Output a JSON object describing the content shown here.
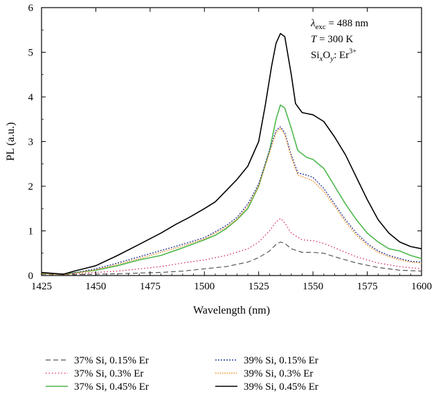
{
  "chart_data": {
    "type": "line",
    "xlabel": "Wavelength (nm)",
    "ylabel": "PL (a.u.)",
    "xlim": [
      1425,
      1600
    ],
    "ylim": [
      0,
      6
    ],
    "xticks": [
      "1425",
      "1450",
      "1475",
      "1500",
      "1525",
      "1550",
      "1575",
      "1600"
    ],
    "yticks": [
      "0",
      "1",
      "2",
      "3",
      "4",
      "5",
      "6"
    ],
    "grid": false,
    "legend_placement": "bottom, below plot, two columns",
    "annotations": {
      "excitation": {
        "symbol": "λ",
        "sub": "exc",
        "rest": " = 488 nm"
      },
      "temperature": {
        "symbol": "T",
        "rest": " = 300 K"
      },
      "material": {
        "si": "Si",
        "sub1": "x",
        "o": "O",
        "sub2": "y",
        "colon": ": Er",
        "sup": "3+"
      }
    },
    "series": [
      {
        "name": "37% Si, 0.15% Er",
        "color": "#555555",
        "dash": "7,4",
        "width": 1.2,
        "x": [
          1425,
          1440,
          1460,
          1480,
          1490,
          1500,
          1510,
          1520,
          1525,
          1530,
          1533,
          1535,
          1537,
          1540,
          1545,
          1550,
          1555,
          1560,
          1570,
          1580,
          1590,
          1600
        ],
        "y": [
          0.03,
          0.02,
          0.04,
          0.07,
          0.1,
          0.15,
          0.2,
          0.3,
          0.4,
          0.55,
          0.7,
          0.75,
          0.72,
          0.6,
          0.52,
          0.52,
          0.5,
          0.42,
          0.28,
          0.18,
          0.12,
          0.1
        ]
      },
      {
        "name": "37% Si, 0.3% Er",
        "color": "#d6245a",
        "dash": "1.5,3",
        "width": 1.3,
        "x": [
          1425,
          1440,
          1460,
          1480,
          1490,
          1500,
          1510,
          1520,
          1525,
          1530,
          1533,
          1535,
          1537,
          1540,
          1545,
          1550,
          1555,
          1560,
          1570,
          1580,
          1590,
          1600
        ],
        "y": [
          0.04,
          0.04,
          0.1,
          0.2,
          0.28,
          0.35,
          0.45,
          0.6,
          0.75,
          1.0,
          1.2,
          1.28,
          1.18,
          0.95,
          0.8,
          0.78,
          0.72,
          0.62,
          0.42,
          0.28,
          0.2,
          0.15
        ]
      },
      {
        "name": "37% Si, 0.45% Er",
        "color": "#4cb84c",
        "dash": "",
        "width": 1.6,
        "x": [
          1425,
          1430,
          1435,
          1440,
          1450,
          1460,
          1470,
          1480,
          1490,
          1500,
          1505,
          1510,
          1515,
          1520,
          1525,
          1530,
          1533,
          1535,
          1537,
          1540,
          1543,
          1547,
          1550,
          1555,
          1560,
          1565,
          1570,
          1575,
          1580,
          1585,
          1590,
          1595,
          1600
        ],
        "y": [
          0.05,
          0.04,
          0.03,
          0.06,
          0.12,
          0.22,
          0.35,
          0.45,
          0.62,
          0.8,
          0.9,
          1.05,
          1.25,
          1.5,
          2.0,
          2.8,
          3.5,
          3.82,
          3.75,
          3.3,
          2.8,
          2.65,
          2.6,
          2.4,
          2.0,
          1.6,
          1.25,
          0.95,
          0.75,
          0.6,
          0.55,
          0.45,
          0.38
        ]
      },
      {
        "name": "39% Si, 0.15% Er",
        "color": "#2b3c9e",
        "dash": "2,2",
        "width": 1.4,
        "x": [
          1425,
          1430,
          1435,
          1440,
          1450,
          1460,
          1470,
          1480,
          1490,
          1500,
          1505,
          1510,
          1515,
          1520,
          1525,
          1530,
          1533,
          1535,
          1537,
          1540,
          1543,
          1547,
          1550,
          1555,
          1560,
          1565,
          1570,
          1575,
          1580,
          1585,
          1590,
          1595,
          1600
        ],
        "y": [
          0.06,
          0.04,
          0.02,
          0.06,
          0.15,
          0.28,
          0.42,
          0.56,
          0.7,
          0.85,
          0.98,
          1.12,
          1.3,
          1.6,
          2.05,
          2.8,
          3.25,
          3.33,
          3.2,
          2.7,
          2.3,
          2.25,
          2.2,
          1.95,
          1.6,
          1.25,
          0.95,
          0.72,
          0.55,
          0.45,
          0.38,
          0.32,
          0.3
        ]
      },
      {
        "name": "39% Si, 0.3% Er",
        "color": "#f08a1c",
        "dash": "1.5,1.8",
        "width": 1.4,
        "x": [
          1425,
          1430,
          1435,
          1440,
          1450,
          1460,
          1470,
          1480,
          1490,
          1500,
          1505,
          1510,
          1515,
          1520,
          1525,
          1530,
          1533,
          1535,
          1537,
          1540,
          1543,
          1547,
          1550,
          1555,
          1560,
          1565,
          1570,
          1575,
          1580,
          1585,
          1590,
          1595,
          1600
        ],
        "y": [
          0.05,
          0.03,
          0.02,
          0.05,
          0.13,
          0.25,
          0.38,
          0.52,
          0.66,
          0.82,
          0.95,
          1.08,
          1.26,
          1.55,
          2.0,
          2.75,
          3.2,
          3.3,
          3.15,
          2.65,
          2.25,
          2.18,
          2.12,
          1.88,
          1.55,
          1.2,
          0.9,
          0.68,
          0.52,
          0.42,
          0.35,
          0.3,
          0.28
        ]
      },
      {
        "name": "39% Si, 0.45% Er",
        "color": "#000000",
        "dash": "",
        "width": 1.6,
        "x": [
          1425,
          1430,
          1435,
          1440,
          1450,
          1460,
          1470,
          1480,
          1487,
          1493,
          1500,
          1505,
          1510,
          1515,
          1520,
          1525,
          1528,
          1531,
          1533,
          1535,
          1537,
          1540,
          1542,
          1545,
          1550,
          1555,
          1560,
          1565,
          1570,
          1575,
          1580,
          1585,
          1590,
          1595,
          1600
        ],
        "y": [
          0.07,
          0.05,
          0.03,
          0.1,
          0.22,
          0.45,
          0.7,
          0.95,
          1.15,
          1.3,
          1.5,
          1.65,
          1.9,
          2.15,
          2.45,
          3.0,
          3.8,
          4.7,
          5.2,
          5.42,
          5.35,
          4.5,
          3.85,
          3.65,
          3.6,
          3.45,
          3.1,
          2.7,
          2.2,
          1.7,
          1.25,
          0.95,
          0.75,
          0.65,
          0.6
        ]
      }
    ]
  }
}
